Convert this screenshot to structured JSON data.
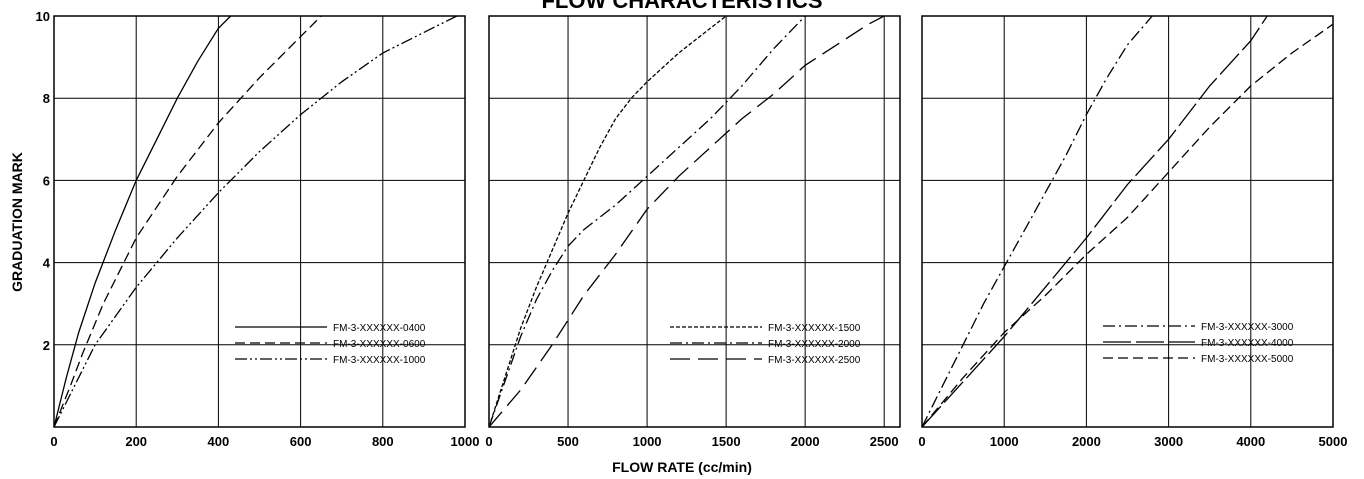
{
  "figure": {
    "title": "FLOW CHARACTERISTICS",
    "xlabel": "FLOW RATE (cc/min)",
    "ylabel": "GRADUATION MARK"
  },
  "chart_data": [
    {
      "type": "line",
      "xlim": [
        0,
        1000
      ],
      "ylim": [
        0,
        10
      ],
      "x_ticks": [
        "0",
        "200",
        "400",
        "600",
        "800",
        "1000"
      ],
      "y_ticks": [
        "2",
        "4",
        "6",
        "8",
        "10"
      ],
      "grid": true,
      "legend_position": "bottom-right",
      "series": [
        {
          "name": "FM-3-XXXXXX-0400",
          "dash": "solid",
          "points": [
            [
              0,
              0
            ],
            [
              30,
              1.2
            ],
            [
              60,
              2.3
            ],
            [
              100,
              3.5
            ],
            [
              150,
              4.8
            ],
            [
              200,
              6.0
            ],
            [
              250,
              7.0
            ],
            [
              300,
              8.0
            ],
            [
              350,
              8.9
            ],
            [
              400,
              9.7
            ],
            [
              430,
              10
            ]
          ]
        },
        {
          "name": "FM-3-XXXXXX-0600",
          "dash": "dash",
          "points": [
            [
              0,
              0
            ],
            [
              40,
              1.0
            ],
            [
              70,
              1.8
            ],
            [
              120,
              3.0
            ],
            [
              200,
              4.6
            ],
            [
              300,
              6.1
            ],
            [
              400,
              7.4
            ],
            [
              500,
              8.5
            ],
            [
              600,
              9.5
            ],
            [
              650,
              10
            ]
          ]
        },
        {
          "name": "FM-3-XXXXXX-1000",
          "dash": "dashdotdot",
          "points": [
            [
              0,
              0
            ],
            [
              50,
              1.0
            ],
            [
              100,
              2.0
            ],
            [
              200,
              3.4
            ],
            [
              300,
              4.6
            ],
            [
              400,
              5.7
            ],
            [
              500,
              6.7
            ],
            [
              600,
              7.6
            ],
            [
              700,
              8.4
            ],
            [
              800,
              9.1
            ],
            [
              900,
              9.6
            ],
            [
              980,
              10
            ]
          ]
        }
      ]
    },
    {
      "type": "line",
      "xlim": [
        0,
        2600
      ],
      "ylim": [
        0,
        10
      ],
      "x_ticks": [
        "0",
        "500",
        "1000",
        "1500",
        "2000",
        "2500"
      ],
      "y_ticks": [
        "2",
        "4",
        "6",
        "8",
        "10"
      ],
      "grid": true,
      "legend_position": "bottom-right",
      "series": [
        {
          "name": "FM-3-XXXXXX-1500",
          "dash": "shortdash",
          "points": [
            [
              0,
              0
            ],
            [
              100,
              1.2
            ],
            [
              200,
              2.4
            ],
            [
              300,
              3.4
            ],
            [
              400,
              4.3
            ],
            [
              500,
              5.2
            ],
            [
              600,
              6.0
            ],
            [
              700,
              6.8
            ],
            [
              800,
              7.5
            ],
            [
              900,
              8.0
            ],
            [
              1000,
              8.4
            ],
            [
              1200,
              9.1
            ],
            [
              1400,
              9.7
            ],
            [
              1500,
              10
            ]
          ]
        },
        {
          "name": "FM-3-XXXXXX-2000",
          "dash": "dashdot",
          "points": [
            [
              0,
              0
            ],
            [
              100,
              1.1
            ],
            [
              200,
              2.2
            ],
            [
              300,
              3.1
            ],
            [
              400,
              3.8
            ],
            [
              500,
              4.4
            ],
            [
              600,
              4.8
            ],
            [
              800,
              5.4
            ],
            [
              1000,
              6.1
            ],
            [
              1200,
              6.8
            ],
            [
              1400,
              7.5
            ],
            [
              1600,
              8.3
            ],
            [
              1800,
              9.2
            ],
            [
              2000,
              10
            ]
          ]
        },
        {
          "name": "FM-3-XXXXXX-2500",
          "dash": "longdash",
          "points": [
            [
              0,
              0
            ],
            [
              200,
              0.9
            ],
            [
              400,
              2.0
            ],
            [
              600,
              3.2
            ],
            [
              800,
              4.2
            ],
            [
              1000,
              5.3
            ],
            [
              1200,
              6.1
            ],
            [
              1400,
              6.8
            ],
            [
              1600,
              7.5
            ],
            [
              1800,
              8.1
            ],
            [
              2000,
              8.8
            ],
            [
              2200,
              9.3
            ],
            [
              2400,
              9.8
            ],
            [
              2600,
              10.2
            ]
          ]
        }
      ]
    },
    {
      "type": "line",
      "xlim": [
        0,
        5000
      ],
      "ylim": [
        0,
        10
      ],
      "x_ticks": [
        "0",
        "1000",
        "2000",
        "3000",
        "4000",
        "5000"
      ],
      "y_ticks": [
        "2",
        "4",
        "6",
        "8",
        "10"
      ],
      "grid": true,
      "legend_position": "top-right",
      "series": [
        {
          "name": "FM-3-XXXXXX-3000",
          "dash": "dashdot",
          "points": [
            [
              0,
              0
            ],
            [
              250,
              1.0
            ],
            [
              500,
              2.0
            ],
            [
              750,
              3.0
            ],
            [
              1000,
              3.9
            ],
            [
              1250,
              4.8
            ],
            [
              1500,
              5.7
            ],
            [
              1750,
              6.6
            ],
            [
              2000,
              7.6
            ],
            [
              2250,
              8.5
            ],
            [
              2500,
              9.3
            ],
            [
              2800,
              10
            ]
          ]
        },
        {
          "name": "FM-3-XXXXXX-4000",
          "dash": "longdashlong",
          "points": [
            [
              0,
              0
            ],
            [
              500,
              1.1
            ],
            [
              1000,
              2.2
            ],
            [
              1500,
              3.4
            ],
            [
              2000,
              4.6
            ],
            [
              2500,
              5.9
            ],
            [
              3000,
              7.0
            ],
            [
              3500,
              8.3
            ],
            [
              4000,
              9.4
            ],
            [
              4200,
              10
            ]
          ]
        },
        {
          "name": "FM-3-XXXXXX-5000",
          "dash": "dash",
          "points": [
            [
              0,
              0
            ],
            [
              500,
              1.2
            ],
            [
              1000,
              2.3
            ],
            [
              1500,
              3.2
            ],
            [
              2000,
              4.2
            ],
            [
              2500,
              5.1
            ],
            [
              3000,
              6.2
            ],
            [
              3500,
              7.3
            ],
            [
              4000,
              8.3
            ],
            [
              4500,
              9.1
            ],
            [
              5000,
              9.8
            ]
          ]
        }
      ]
    }
  ]
}
